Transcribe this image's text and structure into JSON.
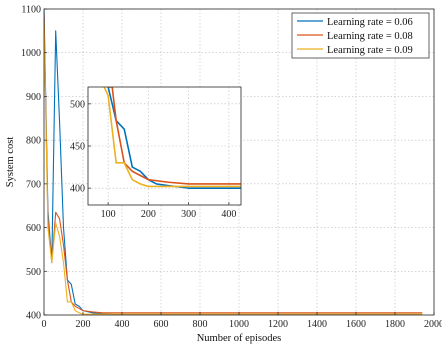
{
  "chart_data": [
    {
      "id": "main",
      "type": "line",
      "title": "",
      "xlabel": "Number of episodes",
      "ylabel": "System cost",
      "xlim": [
        0,
        2000
      ],
      "ylim": [
        400,
        1100
      ],
      "xticks": [
        0,
        200,
        400,
        600,
        800,
        1000,
        1200,
        1400,
        1600,
        1800,
        2000
      ],
      "yticks": [
        400,
        500,
        600,
        700,
        800,
        900,
        1000,
        1100
      ],
      "grid": true,
      "legend": "top-right",
      "series": [
        {
          "name": "Learning rate = 0.06",
          "color": "#0072BD",
          "x": [
            0,
            20,
            40,
            60,
            80,
            100,
            120,
            140,
            160,
            180,
            200,
            250,
            300,
            400,
            600,
            800,
            1000,
            1200,
            1400,
            1600,
            1800,
            1940
          ],
          "y": [
            1100,
            640,
            520,
            1050,
            840,
            600,
            480,
            470,
            425,
            420,
            410,
            405,
            403,
            400,
            400,
            400,
            400,
            400,
            400,
            400,
            400,
            400
          ]
        },
        {
          "name": "Learning rate = 0.08",
          "color": "#D95319",
          "x": [
            0,
            20,
            40,
            60,
            80,
            100,
            120,
            140,
            160,
            180,
            200,
            250,
            300,
            400,
            600,
            800,
            1000,
            1200,
            1400,
            1600,
            1800,
            1940
          ],
          "y": [
            1090,
            620,
            520,
            635,
            620,
            560,
            480,
            430,
            420,
            415,
            410,
            407,
            405,
            405,
            405,
            405,
            405,
            405,
            405,
            405,
            405,
            405
          ]
        },
        {
          "name": "Learning rate = 0.09",
          "color": "#EDB120",
          "x": [
            0,
            20,
            40,
            60,
            80,
            100,
            120,
            140,
            160,
            180,
            200,
            250,
            300,
            400,
            600,
            800,
            1000,
            1200,
            1400,
            1600,
            1800,
            1940
          ],
          "y": [
            1070,
            600,
            520,
            610,
            580,
            520,
            430,
            430,
            410,
            405,
            402,
            402,
            402,
            402,
            402,
            402,
            402,
            402,
            402,
            402,
            402,
            402
          ]
        }
      ]
    },
    {
      "id": "inset",
      "type": "line",
      "title": "",
      "xlim": [
        50,
        430
      ],
      "ylim": [
        380,
        520
      ],
      "xticks": [
        100,
        200,
        300,
        400
      ],
      "yticks": [
        400,
        450,
        500
      ],
      "grid": true,
      "series": [
        {
          "name": "Learning rate = 0.06",
          "color": "#0072BD",
          "x": [
            100,
            120,
            140,
            160,
            180,
            200,
            220,
            250,
            300,
            350,
            400,
            430
          ],
          "y": [
            520,
            480,
            470,
            425,
            420,
            410,
            405,
            403,
            400,
            400,
            400,
            400
          ]
        },
        {
          "name": "Learning rate = 0.08",
          "color": "#D95319",
          "x": [
            100,
            110,
            120,
            140,
            160,
            180,
            200,
            250,
            300,
            350,
            400,
            430
          ],
          "y": [
            520,
            520,
            480,
            430,
            420,
            415,
            410,
            407,
            405,
            405,
            405,
            405
          ]
        },
        {
          "name": "Learning rate = 0.09",
          "color": "#EDB120",
          "x": [
            90,
            100,
            120,
            140,
            160,
            180,
            200,
            250,
            300,
            350,
            400,
            430
          ],
          "y": [
            520,
            510,
            430,
            430,
            410,
            405,
            402,
            402,
            402,
            402,
            402,
            402
          ]
        }
      ]
    }
  ]
}
